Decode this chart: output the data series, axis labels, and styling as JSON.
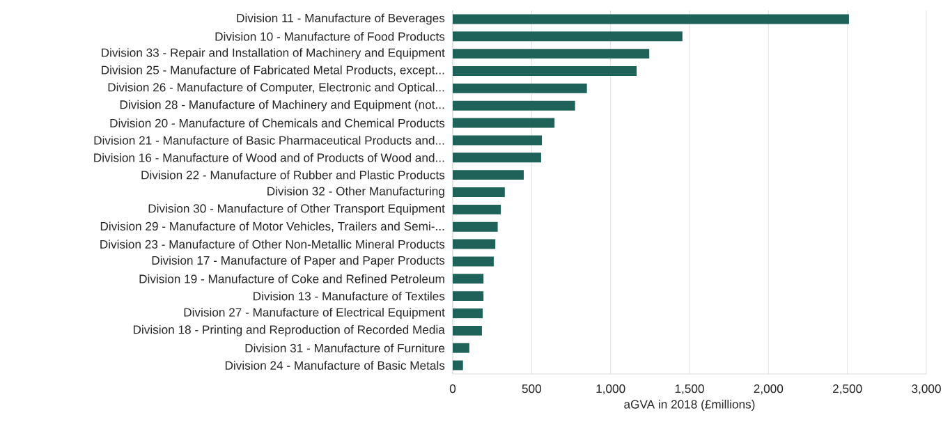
{
  "chart_data": {
    "type": "bar",
    "orientation": "horizontal",
    "categories": [
      "Division 11  - Manufacture of Beverages",
      "Division 10  - Manufacture of Food Products",
      "Division 33  - Repair and Installation of Machinery and Equipment",
      "Division 25  - Manufacture of Fabricated Metal Products, except...",
      "Division 26  - Manufacture of Computer, Electronic and Optical...",
      "Division 28  - Manufacture of Machinery and Equipment (not...",
      "Division 20  - Manufacture of Chemicals and Chemical Products",
      "Division 21  - Manufacture of Basic Pharmaceutical Products and...",
      "Division 16  - Manufacture of Wood and of Products of Wood and...",
      "Division 22  - Manufacture of Rubber and Plastic Products",
      "Division 32  - Other Manufacturing",
      "Division 30  - Manufacture of Other Transport Equipment",
      "Division 29  - Manufacture of Motor Vehicles, Trailers and Semi-...",
      "Division 23  - Manufacture of Other Non-Metallic Mineral Products",
      "Division 17  - Manufacture of Paper and Paper Products",
      "Division 19  - Manufacture of Coke and Refined Petroleum",
      "Division 13  - Manufacture of Textiles",
      "Division 27  - Manufacture of Electrical Equipment",
      "Division 18  - Printing and Reproduction of Recorded Media",
      "Division 31  - Manufacture of Furniture",
      "Division 24  - Manufacture of Basic Metals"
    ],
    "values": [
      2510,
      1455,
      1245,
      1165,
      850,
      775,
      645,
      565,
      560,
      450,
      330,
      305,
      285,
      270,
      260,
      195,
      195,
      190,
      185,
      105,
      65
    ],
    "color": "#1f6259",
    "xlim": [
      0,
      3000
    ],
    "xticks": [
      0,
      500,
      {
        "value": 1000,
        "label": "1,000"
      },
      {
        "value": 1500,
        "label": "1,500"
      },
      {
        "value": 2000,
        "label": "2,000"
      },
      {
        "value": 2500,
        "label": "2,500"
      },
      {
        "value": 3000,
        "label": "3,000"
      }
    ],
    "xlabel": "aGVA in 2018 (£millions)",
    "grid": "x"
  }
}
